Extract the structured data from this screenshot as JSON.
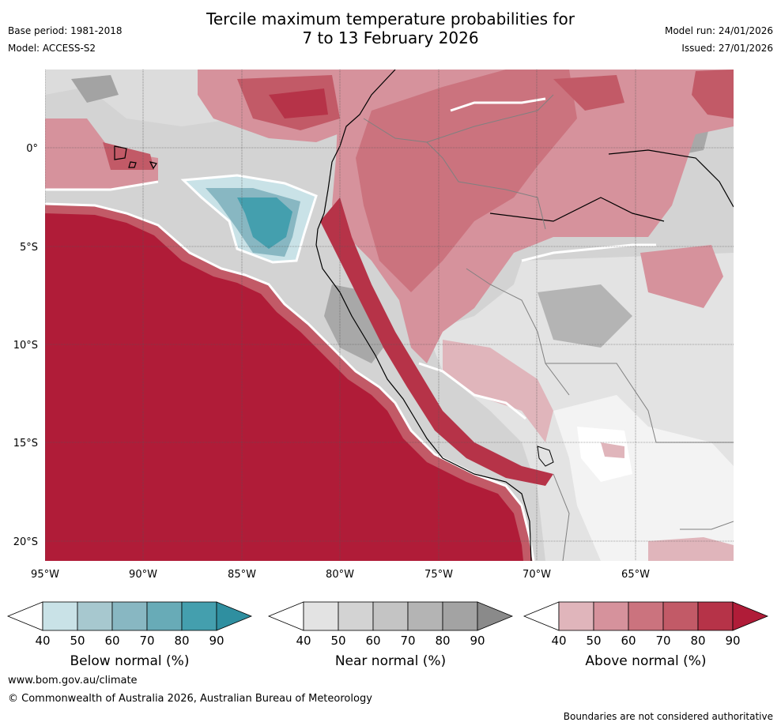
{
  "title_line1": "Tercile maximum temperature probabilities for",
  "title_line2": "7 to 13 February 2026",
  "base_period": "Base period: 1981-2018",
  "model": "Model: ACCESS-S2",
  "model_run": "Model run: 24/01/2026",
  "issued": "Issued: 27/01/2026",
  "lat_ticks": [
    "0°",
    "5°S",
    "10°S",
    "15°S",
    "20°S"
  ],
  "lon_ticks": [
    "95°W",
    "90°W",
    "85°W",
    "80°W",
    "75°W",
    "70°W",
    "65°W"
  ],
  "colorbar_ticks": [
    "40",
    "50",
    "60",
    "70",
    "80",
    "90"
  ],
  "colorbars": [
    {
      "label": "Below normal (%)",
      "colors": [
        "#ffffff",
        "#c9e2e7",
        "#a7c8cf",
        "#88b7c2",
        "#68abb7",
        "#449fae",
        "#2f8fa0"
      ]
    },
    {
      "label": "Near normal (%)",
      "colors": [
        "#ffffff",
        "#e3e3e3",
        "#d3d3d3",
        "#c4c4c4",
        "#b4b4b4",
        "#a3a3a3",
        "#8a8a8a"
      ]
    },
    {
      "label": "Above normal (%)",
      "colors": [
        "#ffffff",
        "#e0b5bb",
        "#d6929c",
        "#cb737e",
        "#c25a67",
        "#b63348",
        "#b01c38"
      ]
    }
  ],
  "website": "www.bom.gov.au/climate",
  "copyright": "© Commonwealth of Australia 2026, Australian Bureau of Meteorology",
  "disclaimer": "Boundaries are not considered authoritative"
}
